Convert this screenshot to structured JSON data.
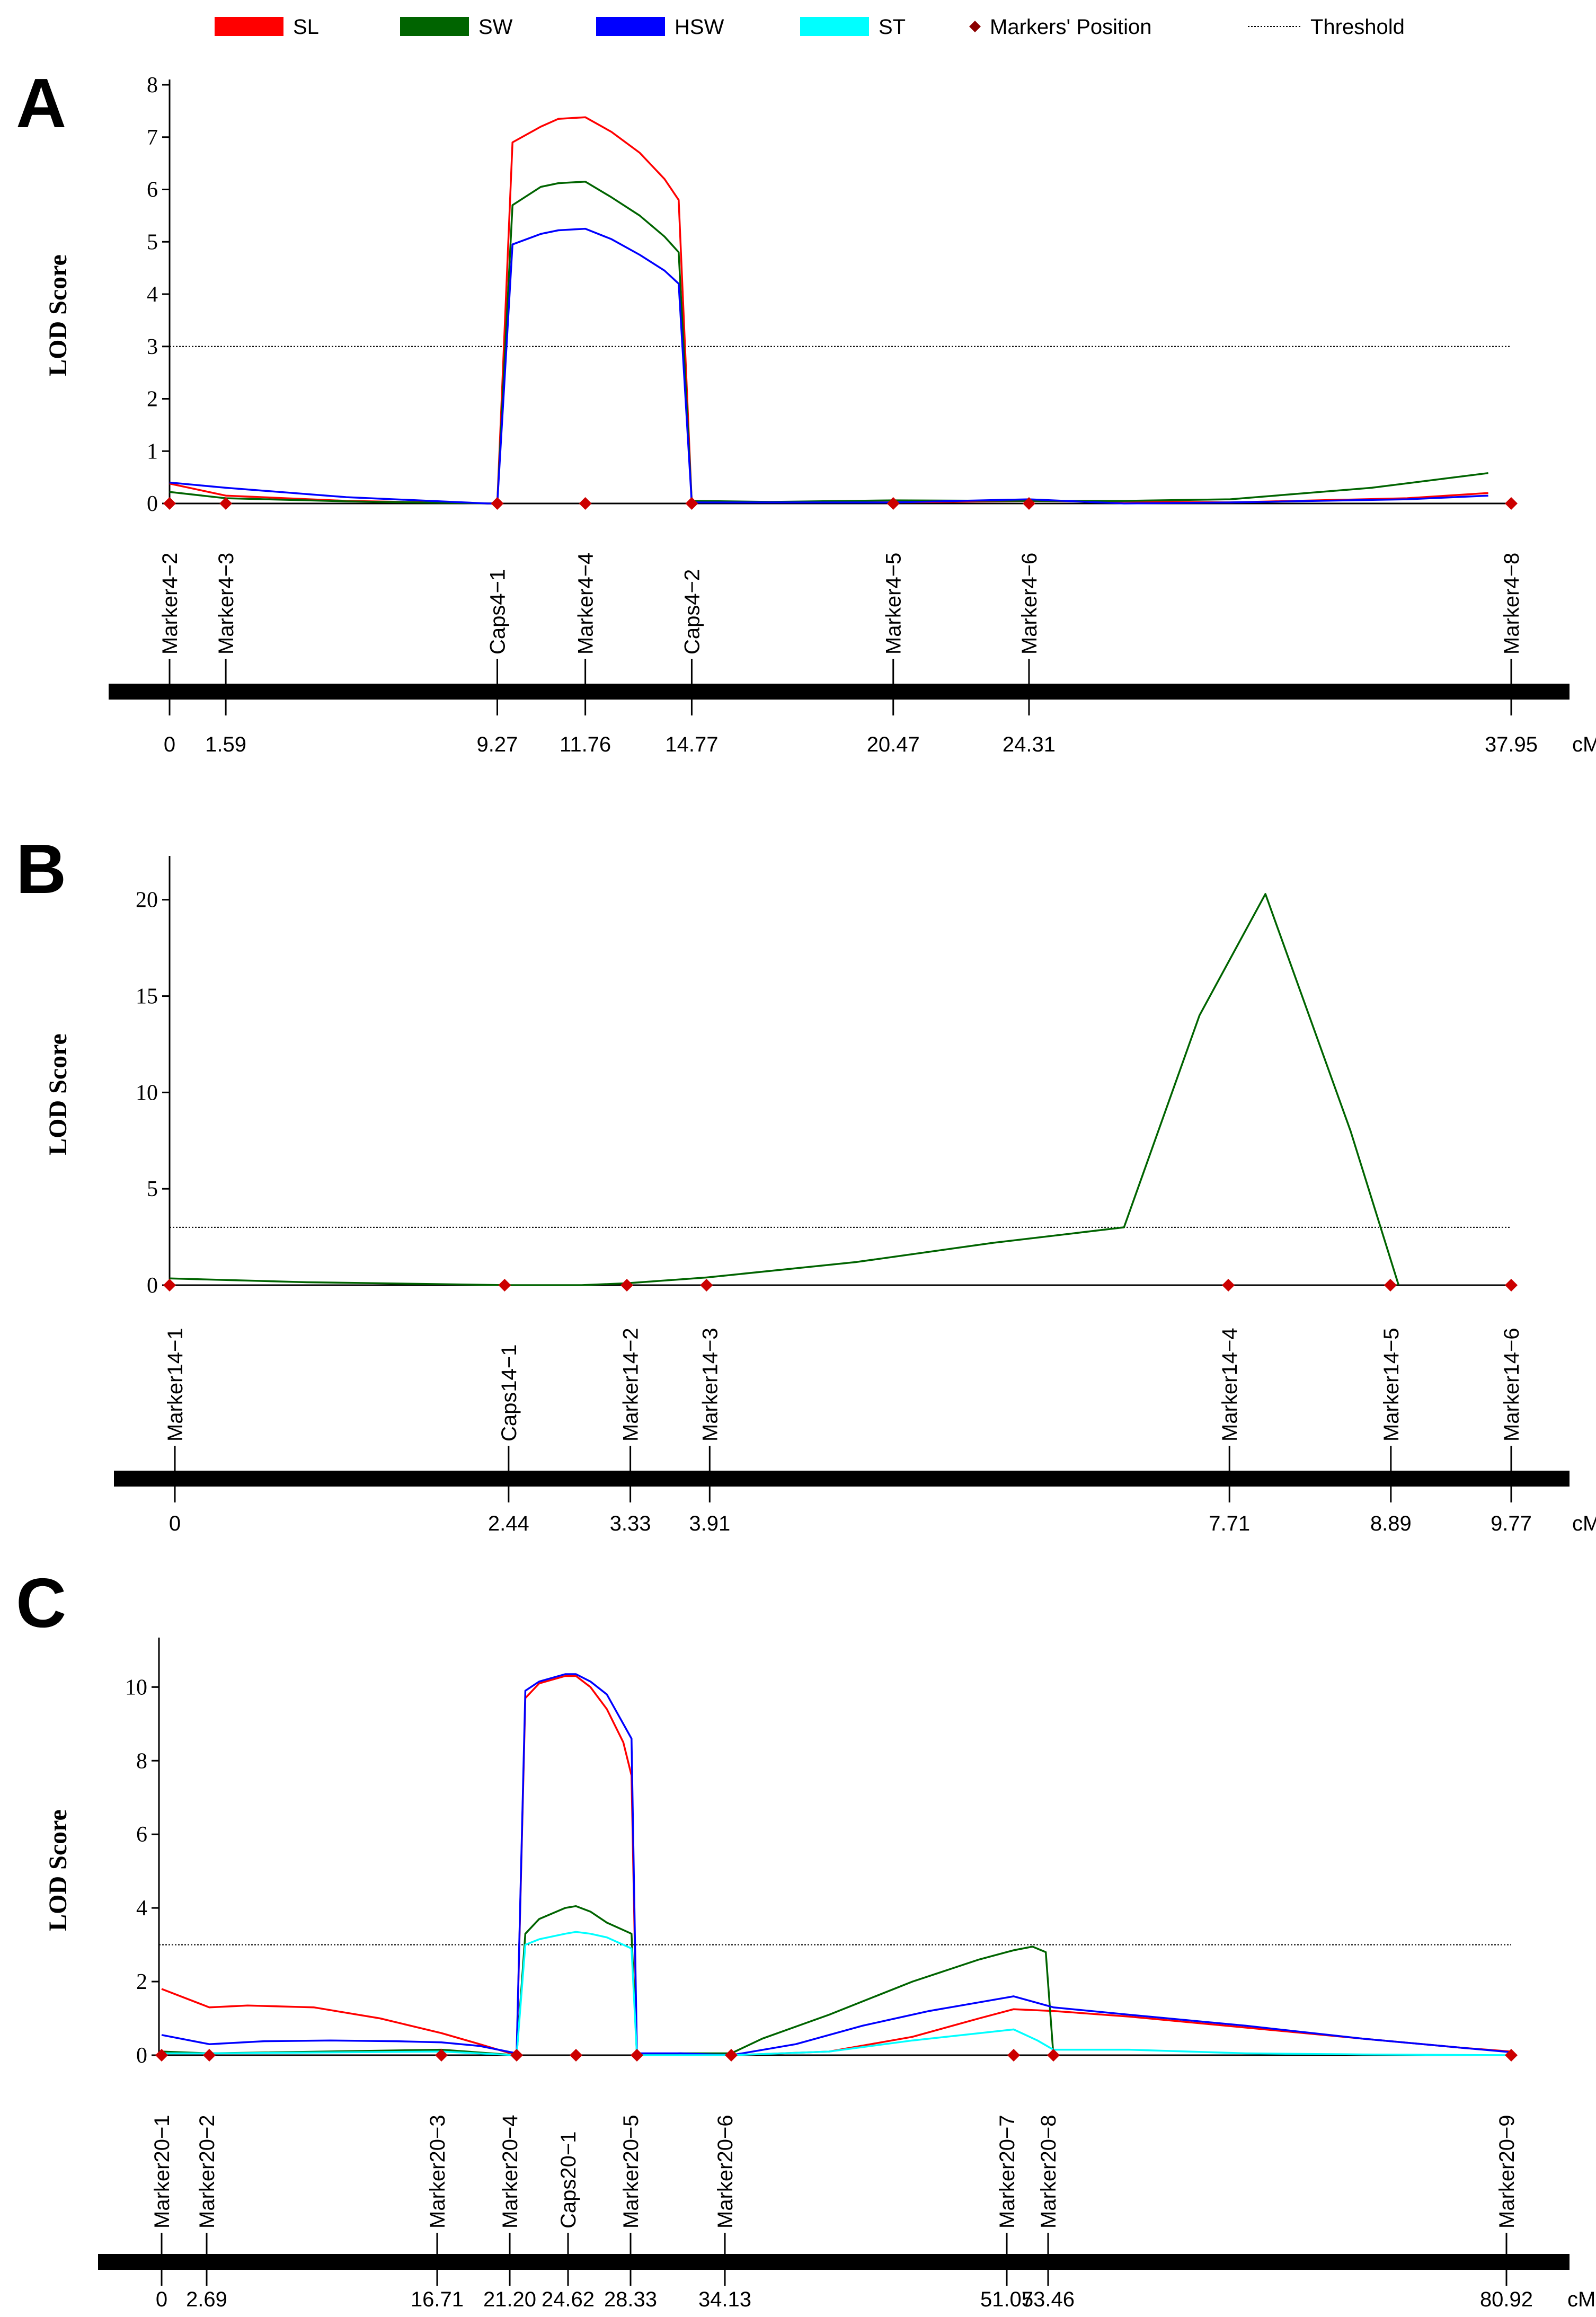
{
  "legend": {
    "items": [
      {
        "name": "SL",
        "color": "#ff0000",
        "kind": "swatch"
      },
      {
        "name": "SW",
        "color": "#006400",
        "kind": "swatch"
      },
      {
        "name": "HSW",
        "color": "#0000ff",
        "kind": "swatch"
      },
      {
        "name": "ST",
        "color": "#00ffff",
        "kind": "swatch"
      },
      {
        "name": "Markers' Position",
        "color": "#8b0000",
        "kind": "diamond"
      },
      {
        "name": "Threshold",
        "color": "#000000",
        "kind": "dashed"
      }
    ]
  },
  "chart_data": [
    {
      "panel": "A",
      "type": "line",
      "ylabel": "LOD Score",
      "unit": "cM",
      "ylim": [
        0,
        8
      ],
      "yticks": [
        0,
        1,
        2,
        3,
        4,
        5,
        6,
        7,
        8
      ],
      "threshold": 3,
      "markers": [
        {
          "name": "Marker4−2",
          "pos": 0,
          "pos_label": "0"
        },
        {
          "name": "Marker4−3",
          "pos": 1.59,
          "pos_label": "1.59"
        },
        {
          "name": "Caps4−1",
          "pos": 9.27,
          "pos_label": "9.27"
        },
        {
          "name": "Marker4−4",
          "pos": 11.76,
          "pos_label": "11.76"
        },
        {
          "name": "Caps4−2",
          "pos": 14.77,
          "pos_label": "14.77"
        },
        {
          "name": "Marker4−5",
          "pos": 20.47,
          "pos_label": "20.47"
        },
        {
          "name": "Marker4−6",
          "pos": 24.31,
          "pos_label": "24.31"
        },
        {
          "name": "Marker4−8",
          "pos": 37.95,
          "pos_label": "37.95"
        }
      ],
      "series": [
        {
          "name": "SL",
          "color": "#ff0000",
          "points": [
            [
              0,
              0.38
            ],
            [
              1.59,
              0.15
            ],
            [
              5,
              0.05
            ],
            [
              9,
              0.0
            ],
            [
              9.27,
              0.0
            ],
            [
              9.7,
              6.9
            ],
            [
              10.5,
              7.2
            ],
            [
              11,
              7.35
            ],
            [
              11.76,
              7.38
            ],
            [
              12.5,
              7.1
            ],
            [
              13.3,
              6.7
            ],
            [
              14.0,
              6.2
            ],
            [
              14.4,
              5.8
            ],
            [
              14.77,
              0.03
            ],
            [
              17,
              0.03
            ],
            [
              20.47,
              0.02
            ],
            [
              24.31,
              0.05
            ],
            [
              30,
              0.02
            ],
            [
              35,
              0.1
            ],
            [
              37.3,
              0.2
            ]
          ]
        },
        {
          "name": "SW",
          "color": "#006400",
          "points": [
            [
              0,
              0.22
            ],
            [
              1.59,
              0.1
            ],
            [
              5,
              0.04
            ],
            [
              9,
              0.0
            ],
            [
              9.27,
              0.0
            ],
            [
              9.7,
              5.7
            ],
            [
              10.5,
              6.05
            ],
            [
              11,
              6.12
            ],
            [
              11.76,
              6.15
            ],
            [
              12.5,
              5.85
            ],
            [
              13.3,
              5.5
            ],
            [
              14.0,
              5.1
            ],
            [
              14.4,
              4.8
            ],
            [
              14.77,
              0.05
            ],
            [
              17,
              0.03
            ],
            [
              20.47,
              0.06
            ],
            [
              24.31,
              0.05
            ],
            [
              27,
              0.05
            ],
            [
              30,
              0.08
            ],
            [
              34,
              0.3
            ],
            [
              37.3,
              0.58
            ]
          ]
        },
        {
          "name": "HSW",
          "color": "#0000ff",
          "points": [
            [
              0,
              0.4
            ],
            [
              1.59,
              0.3
            ],
            [
              5,
              0.12
            ],
            [
              9,
              0.0
            ],
            [
              9.27,
              0.0
            ],
            [
              9.7,
              4.95
            ],
            [
              10.5,
              5.15
            ],
            [
              11,
              5.22
            ],
            [
              11.76,
              5.25
            ],
            [
              12.5,
              5.05
            ],
            [
              13.3,
              4.75
            ],
            [
              14.0,
              4.45
            ],
            [
              14.4,
              4.2
            ],
            [
              14.77,
              0.02
            ],
            [
              17,
              0.02
            ],
            [
              20.47,
              0.02
            ],
            [
              24.31,
              0.08
            ],
            [
              27,
              0.0
            ],
            [
              30,
              0.02
            ],
            [
              35,
              0.08
            ],
            [
              37.3,
              0.15
            ]
          ]
        }
      ]
    },
    {
      "panel": "B",
      "type": "line",
      "ylabel": "LOD Score",
      "unit": "cM",
      "ylim": [
        0,
        22
      ],
      "yticks": [
        0,
        5,
        10,
        15,
        20
      ],
      "threshold": 3,
      "markers": [
        {
          "name": "Marker14−1",
          "pos": 0,
          "pos_label": "0"
        },
        {
          "name": "Caps14−1",
          "pos": 2.44,
          "pos_label": "2.44"
        },
        {
          "name": "Marker14−2",
          "pos": 3.33,
          "pos_label": "3.33"
        },
        {
          "name": "Marker14−3",
          "pos": 3.91,
          "pos_label": "3.91"
        },
        {
          "name": "Marker14−4",
          "pos": 7.71,
          "pos_label": "7.71"
        },
        {
          "name": "Marker14−5",
          "pos": 8.89,
          "pos_label": "8.89"
        },
        {
          "name": "Marker14−6",
          "pos": 9.77,
          "pos_label": "9.77"
        }
      ],
      "series": [
        {
          "name": "SW",
          "color": "#006400",
          "points": [
            [
              0,
              0.35
            ],
            [
              1,
              0.15
            ],
            [
              2,
              0.05
            ],
            [
              2.44,
              0.0
            ],
            [
              3.0,
              0.0
            ],
            [
              3.33,
              0.1
            ],
            [
              3.91,
              0.4
            ],
            [
              5,
              1.2
            ],
            [
              6,
              2.2
            ],
            [
              6.95,
              3.0
            ],
            [
              7.5,
              14
            ],
            [
              7.98,
              20.3
            ],
            [
              8.6,
              8
            ],
            [
              8.95,
              0.0
            ]
          ]
        }
      ]
    },
    {
      "panel": "C",
      "type": "line",
      "ylabel": "LOD Score",
      "unit": "cM",
      "ylim": [
        0,
        11.2
      ],
      "yticks": [
        0,
        2,
        4,
        6,
        8,
        10
      ],
      "threshold": 3,
      "markers": [
        {
          "name": "Marker20−1",
          "pos": 0,
          "pos_label": "0"
        },
        {
          "name": "Marker20−2",
          "pos": 2.69,
          "pos_label": "2.69"
        },
        {
          "name": "Marker20−3",
          "pos": 16.71,
          "pos_label": "16.71"
        },
        {
          "name": "Marker20−4",
          "pos": 21.2,
          "pos_label": "21.20"
        },
        {
          "name": "Caps20−1",
          "pos": 24.62,
          "pos_label": "24.62"
        },
        {
          "name": "Marker20−5",
          "pos": 28.33,
          "pos_label": "28.33"
        },
        {
          "name": "Marker20−6",
          "pos": 34.13,
          "pos_label": "34.13"
        },
        {
          "name": "Marker20−7",
          "pos": 51.07,
          "pos_label": "51.07"
        },
        {
          "name": "Marker20−8",
          "pos": 53.46,
          "pos_label": "53.46"
        },
        {
          "name": "Marker20−9",
          "pos": 80.92,
          "pos_label": "80.92"
        }
      ],
      "series": [
        {
          "name": "SL",
          "color": "#ff0000",
          "points": [
            [
              0,
              1.8
            ],
            [
              2.69,
              1.3
            ],
            [
              5,
              1.35
            ],
            [
              9,
              1.3
            ],
            [
              13,
              1.0
            ],
            [
              16.71,
              0.6
            ],
            [
              19,
              0.3
            ],
            [
              21.2,
              0.0
            ],
            [
              21.7,
              9.7
            ],
            [
              22.5,
              10.1
            ],
            [
              24.0,
              10.3
            ],
            [
              24.62,
              10.3
            ],
            [
              25.5,
              10.0
            ],
            [
              26.5,
              9.4
            ],
            [
              27.5,
              8.5
            ],
            [
              28.0,
              7.6
            ],
            [
              28.33,
              0.0
            ],
            [
              31,
              0.0
            ],
            [
              34.13,
              0.0
            ],
            [
              40,
              0.1
            ],
            [
              45,
              0.5
            ],
            [
              49,
              1.0
            ],
            [
              51.07,
              1.25
            ],
            [
              53.46,
              1.2
            ],
            [
              58,
              1.05
            ],
            [
              65,
              0.75
            ],
            [
              72,
              0.45
            ],
            [
              78,
              0.2
            ],
            [
              80.92,
              0.1
            ]
          ]
        },
        {
          "name": "SW",
          "color": "#006400",
          "points": [
            [
              0,
              0.1
            ],
            [
              2.69,
              0.05
            ],
            [
              16.71,
              0.15
            ],
            [
              21.2,
              0.0
            ],
            [
              21.7,
              3.3
            ],
            [
              22.5,
              3.7
            ],
            [
              24.0,
              4.0
            ],
            [
              24.62,
              4.05
            ],
            [
              25.5,
              3.9
            ],
            [
              26.5,
              3.6
            ],
            [
              27.5,
              3.4
            ],
            [
              28.0,
              3.3
            ],
            [
              28.33,
              0.0
            ],
            [
              31,
              0.05
            ],
            [
              34.13,
              0.05
            ],
            [
              36,
              0.45
            ],
            [
              40,
              1.1
            ],
            [
              45,
              2.0
            ],
            [
              49,
              2.6
            ],
            [
              51.07,
              2.85
            ],
            [
              52.2,
              2.95
            ],
            [
              53.0,
              2.8
            ],
            [
              53.46,
              0.0
            ]
          ]
        },
        {
          "name": "HSW",
          "color": "#0000ff",
          "points": [
            [
              0,
              0.55
            ],
            [
              2.69,
              0.3
            ],
            [
              6,
              0.38
            ],
            [
              10,
              0.4
            ],
            [
              14,
              0.38
            ],
            [
              16.71,
              0.35
            ],
            [
              19,
              0.25
            ],
            [
              21.2,
              0.05
            ],
            [
              21.7,
              9.9
            ],
            [
              22.5,
              10.15
            ],
            [
              24.0,
              10.35
            ],
            [
              24.62,
              10.35
            ],
            [
              25.5,
              10.15
            ],
            [
              26.5,
              9.8
            ],
            [
              27.5,
              9.0
            ],
            [
              28.0,
              8.6
            ],
            [
              28.33,
              0.05
            ],
            [
              31,
              0.05
            ],
            [
              34.13,
              0.0
            ],
            [
              38,
              0.3
            ],
            [
              42,
              0.8
            ],
            [
              46,
              1.2
            ],
            [
              51.07,
              1.6
            ],
            [
              53.46,
              1.3
            ],
            [
              58,
              1.1
            ],
            [
              65,
              0.8
            ],
            [
              72,
              0.45
            ],
            [
              78,
              0.2
            ],
            [
              80.92,
              0.08
            ]
          ]
        },
        {
          "name": "ST",
          "color": "#00ffff",
          "points": [
            [
              0,
              0.05
            ],
            [
              2.69,
              0.05
            ],
            [
              16.71,
              0.1
            ],
            [
              21.2,
              0.0
            ],
            [
              21.7,
              3.0
            ],
            [
              22.5,
              3.15
            ],
            [
              24.0,
              3.3
            ],
            [
              24.62,
              3.35
            ],
            [
              25.5,
              3.3
            ],
            [
              26.5,
              3.2
            ],
            [
              27.5,
              3.0
            ],
            [
              28.0,
              2.9
            ],
            [
              28.33,
              0.0
            ],
            [
              34.13,
              0.0
            ],
            [
              40,
              0.1
            ],
            [
              45,
              0.4
            ],
            [
              51.07,
              0.7
            ],
            [
              52.5,
              0.4
            ],
            [
              53.46,
              0.15
            ],
            [
              58,
              0.15
            ],
            [
              65,
              0.05
            ],
            [
              72,
              0.02
            ],
            [
              80.92,
              0.0
            ]
          ]
        }
      ]
    }
  ]
}
